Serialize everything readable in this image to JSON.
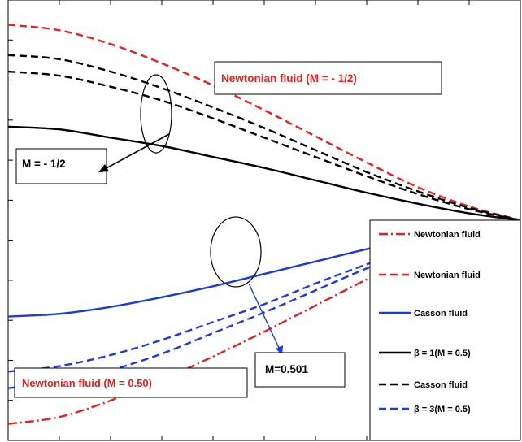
{
  "chart_data": {
    "type": "line",
    "title": "",
    "xlabel": "",
    "ylabel": "",
    "xlim": [
      0,
      1
    ],
    "ylim": [
      -1.6,
      1.6
    ],
    "grid": false,
    "legend_position": "bottom-right",
    "x": [
      0,
      0.1,
      0.2,
      0.3,
      0.4,
      0.5,
      0.6,
      0.7,
      0.8,
      0.9,
      1.0
    ],
    "series": [
      {
        "style": "dashed",
        "color": "#e8201f",
        "values": [
          1.42,
          1.38,
          1.28,
          1.14,
          0.98,
          0.8,
          0.61,
          0.42,
          0.24,
          0.1,
          0.0
        ]
      },
      {
        "style": "dashed",
        "color": "#000000",
        "values": [
          1.2,
          1.17,
          1.08,
          0.96,
          0.82,
          0.67,
          0.51,
          0.35,
          0.21,
          0.09,
          0.0
        ]
      },
      {
        "style": "dashed",
        "color": "#000000",
        "values": [
          1.08,
          1.05,
          0.97,
          0.87,
          0.74,
          0.6,
          0.46,
          0.32,
          0.19,
          0.08,
          0.0
        ]
      },
      {
        "style": "solid",
        "color": "#000000",
        "values": [
          0.68,
          0.66,
          0.6,
          0.54,
          0.46,
          0.38,
          0.29,
          0.2,
          0.12,
          0.05,
          0.0
        ]
      },
      {
        "style": "solid",
        "color": "#1d3bdc",
        "values": [
          -0.7,
          -0.68,
          -0.63,
          -0.56,
          -0.48,
          -0.39,
          -0.3,
          -0.21,
          -0.13,
          -0.05,
          0.0
        ]
      },
      {
        "style": "dashed",
        "color": "#1d3bdc",
        "values": [
          -1.1,
          -1.06,
          -0.98,
          -0.87,
          -0.74,
          -0.61,
          -0.46,
          -0.32,
          -0.19,
          -0.08,
          0.0
        ]
      },
      {
        "style": "dashed",
        "color": "#1d3bdc",
        "values": [
          -1.22,
          -1.18,
          -1.09,
          -0.97,
          -0.82,
          -0.67,
          -0.51,
          -0.35,
          -0.21,
          -0.09,
          0.0
        ]
      },
      {
        "style": "dashdot",
        "color": "#e8201f",
        "values": [
          -1.48,
          -1.43,
          -1.31,
          -1.16,
          -0.99,
          -0.81,
          -0.62,
          -0.43,
          -0.25,
          -0.1,
          0.0
        ]
      }
    ],
    "annotations": [
      {
        "text": "Newtonian fluid (M = - 1/2)",
        "color": "#e8201f"
      },
      {
        "text": "M = - 1/2",
        "color": "#000000"
      },
      {
        "text": "M=0.501",
        "color": "#000000"
      },
      {
        "text": "Newtonian fluid (M = 0.50)",
        "color": "#e8201f"
      }
    ],
    "legend": [
      {
        "label": "Newtonian fluid",
        "style": "dashdot",
        "color": "#e8201f"
      },
      {
        "label": "Newtonian fluid",
        "style": "dashed",
        "color": "#e8201f"
      },
      {
        "label": "Casson fluid",
        "style": "solid",
        "color": "#1d3bdc"
      },
      {
        "label": "β = 1(M = 0.5)",
        "style": "solid",
        "color": "#000000"
      },
      {
        "label": "Casson fluid",
        "style": "dashed",
        "color": "#000000"
      },
      {
        "label": "β = 3(M = 0.5)",
        "style": "dashed",
        "color": "#1d3bdc"
      }
    ]
  }
}
